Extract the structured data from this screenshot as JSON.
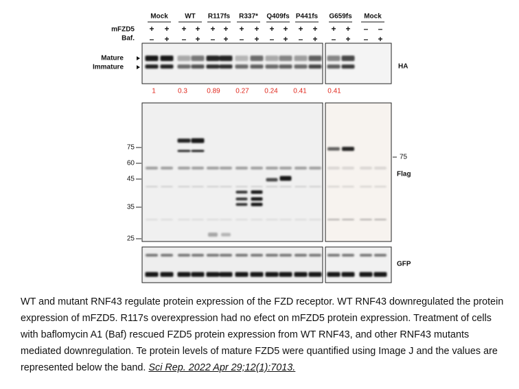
{
  "figure": {
    "groups": [
      "Mock",
      "WT",
      "R117fs",
      "R337*",
      "Q409fs",
      "P441fs",
      "G659fs",
      "Mock"
    ],
    "treatment_rows": [
      {
        "label": "mFZD5",
        "signs": [
          "+",
          "+",
          "+",
          "+",
          "+",
          "+",
          "+",
          "+",
          "+",
          "+",
          "+",
          "+",
          "+",
          "+",
          "–",
          "–"
        ]
      },
      {
        "label": "Baf.",
        "signs": [
          "–",
          "+",
          "–",
          "+",
          "–",
          "+",
          "–",
          "+",
          "–",
          "+",
          "–",
          "+",
          "–",
          "+",
          "–",
          "+"
        ]
      }
    ],
    "ha_panel": {
      "band_labels": [
        "Mature",
        "Immature"
      ],
      "label": "HA"
    },
    "quantification": [
      "1",
      "0.3",
      "0.89",
      "0.27",
      "0.24",
      "0.41",
      "0.41"
    ],
    "flag_panel": {
      "left_markers": [
        "75",
        "60",
        "45",
        "35",
        "25"
      ],
      "right_marker": "75",
      "label": "Flag"
    },
    "gfp_panel": {
      "label": "GFP"
    }
  },
  "caption": {
    "text": "WT and mutant RNF43 regulate protein expression of the FZD receptor. WT RNF43 downregulated the protein expression of mFZD5. R117s overexpression had no efect on mFZD5 protein expression. Treatment of cells with baflomycin A1 (Baf) rescued FZD5 protein expression from WT RNF43, and other RNF43 mutants mediated downregulation. Te protein levels of mature FZD5 were quantified using Image J and the values are represented below the band.",
    "citation": "Sci Rep. 2022 Apr 29;12(1):7013."
  }
}
